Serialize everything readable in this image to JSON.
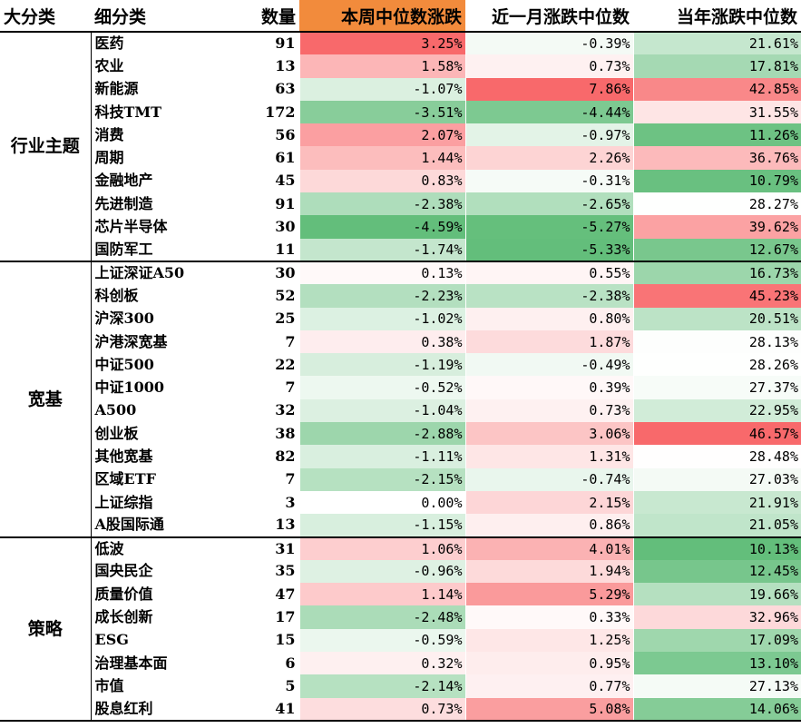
{
  "header": {
    "col_category": "大分类",
    "col_subcategory": "细分类",
    "col_count": "数量",
    "col_week": "本周中位数涨跌",
    "col_month": "近一月涨跌中位数",
    "col_ytd": "当年涨跌中位数"
  },
  "colors": {
    "header_highlight": "#f28b3c",
    "positive_strong": "#f8696b",
    "negative_strong": "#63be7b",
    "neutral": "#ffffff"
  },
  "groups": [
    {
      "name": "行业主题",
      "rows": [
        {
          "name": "医药",
          "count": "91",
          "week": "3.25%",
          "month": "-0.39%",
          "ytd": "21.61%"
        },
        {
          "name": "农业",
          "count": "13",
          "week": "1.58%",
          "month": "0.73%",
          "ytd": "17.81%"
        },
        {
          "name": "新能源",
          "count": "63",
          "week": "-1.07%",
          "month": "7.86%",
          "ytd": "42.85%"
        },
        {
          "name": "科技TMT",
          "count": "172",
          "week": "-3.51%",
          "month": "-4.44%",
          "ytd": "31.55%"
        },
        {
          "name": "消费",
          "count": "56",
          "week": "2.07%",
          "month": "-0.97%",
          "ytd": "11.26%"
        },
        {
          "name": "周期",
          "count": "61",
          "week": "1.44%",
          "month": "2.26%",
          "ytd": "36.76%"
        },
        {
          "name": "金融地产",
          "count": "45",
          "week": "0.83%",
          "month": "-0.31%",
          "ytd": "10.79%"
        },
        {
          "name": "先进制造",
          "count": "91",
          "week": "-2.38%",
          "month": "-2.65%",
          "ytd": "28.27%"
        },
        {
          "name": "芯片半导体",
          "count": "30",
          "week": "-4.59%",
          "month": "-5.27%",
          "ytd": "39.62%"
        },
        {
          "name": "国防军工",
          "count": "11",
          "week": "-1.74%",
          "month": "-5.33%",
          "ytd": "12.67%"
        }
      ]
    },
    {
      "name": "宽基",
      "rows": [
        {
          "name": "上证深证A50",
          "count": "30",
          "week": "0.13%",
          "month": "0.55%",
          "ytd": "16.73%"
        },
        {
          "name": "科创板",
          "count": "52",
          "week": "-2.23%",
          "month": "-2.38%",
          "ytd": "45.23%"
        },
        {
          "name": "沪深300",
          "count": "25",
          "week": "-1.02%",
          "month": "0.80%",
          "ytd": "20.51%"
        },
        {
          "name": "沪港深宽基",
          "count": "7",
          "week": "0.38%",
          "month": "1.87%",
          "ytd": "28.13%"
        },
        {
          "name": "中证500",
          "count": "22",
          "week": "-1.19%",
          "month": "-0.49%",
          "ytd": "28.26%"
        },
        {
          "name": "中证1000",
          "count": "7",
          "week": "-0.52%",
          "month": "0.39%",
          "ytd": "27.37%"
        },
        {
          "name": "A500",
          "count": "32",
          "week": "-1.04%",
          "month": "0.73%",
          "ytd": "22.95%"
        },
        {
          "name": "创业板",
          "count": "38",
          "week": "-2.88%",
          "month": "3.06%",
          "ytd": "46.57%"
        },
        {
          "name": "其他宽基",
          "count": "82",
          "week": "-1.11%",
          "month": "1.31%",
          "ytd": "28.48%"
        },
        {
          "name": "区域ETF",
          "count": "7",
          "week": "-2.15%",
          "month": "-0.74%",
          "ytd": "27.03%"
        },
        {
          "name": "上证综指",
          "count": "3",
          "week": "0.00%",
          "month": "2.15%",
          "ytd": "21.91%"
        },
        {
          "name": "A股国际通",
          "count": "13",
          "week": "-1.15%",
          "month": "0.86%",
          "ytd": "21.05%"
        }
      ]
    },
    {
      "name": "策略",
      "rows": [
        {
          "name": "低波",
          "count": "31",
          "week": "1.06%",
          "month": "4.01%",
          "ytd": "10.13%"
        },
        {
          "name": "国央民企",
          "count": "35",
          "week": "-0.96%",
          "month": "1.94%",
          "ytd": "12.45%"
        },
        {
          "name": "质量价值",
          "count": "47",
          "week": "1.14%",
          "month": "5.29%",
          "ytd": "19.66%"
        },
        {
          "name": "成长创新",
          "count": "17",
          "week": "-2.48%",
          "month": "0.33%",
          "ytd": "32.96%"
        },
        {
          "name": "ESG",
          "count": "15",
          "week": "-0.59%",
          "month": "1.25%",
          "ytd": "17.09%"
        },
        {
          "name": "治理基本面",
          "count": "6",
          "week": "0.32%",
          "month": "0.95%",
          "ytd": "13.10%"
        },
        {
          "name": "市值",
          "count": "5",
          "week": "-2.14%",
          "month": "0.77%",
          "ytd": "27.13%"
        },
        {
          "name": "股息红利",
          "count": "41",
          "week": "0.73%",
          "month": "5.08%",
          "ytd": "14.06%"
        }
      ]
    }
  ]
}
